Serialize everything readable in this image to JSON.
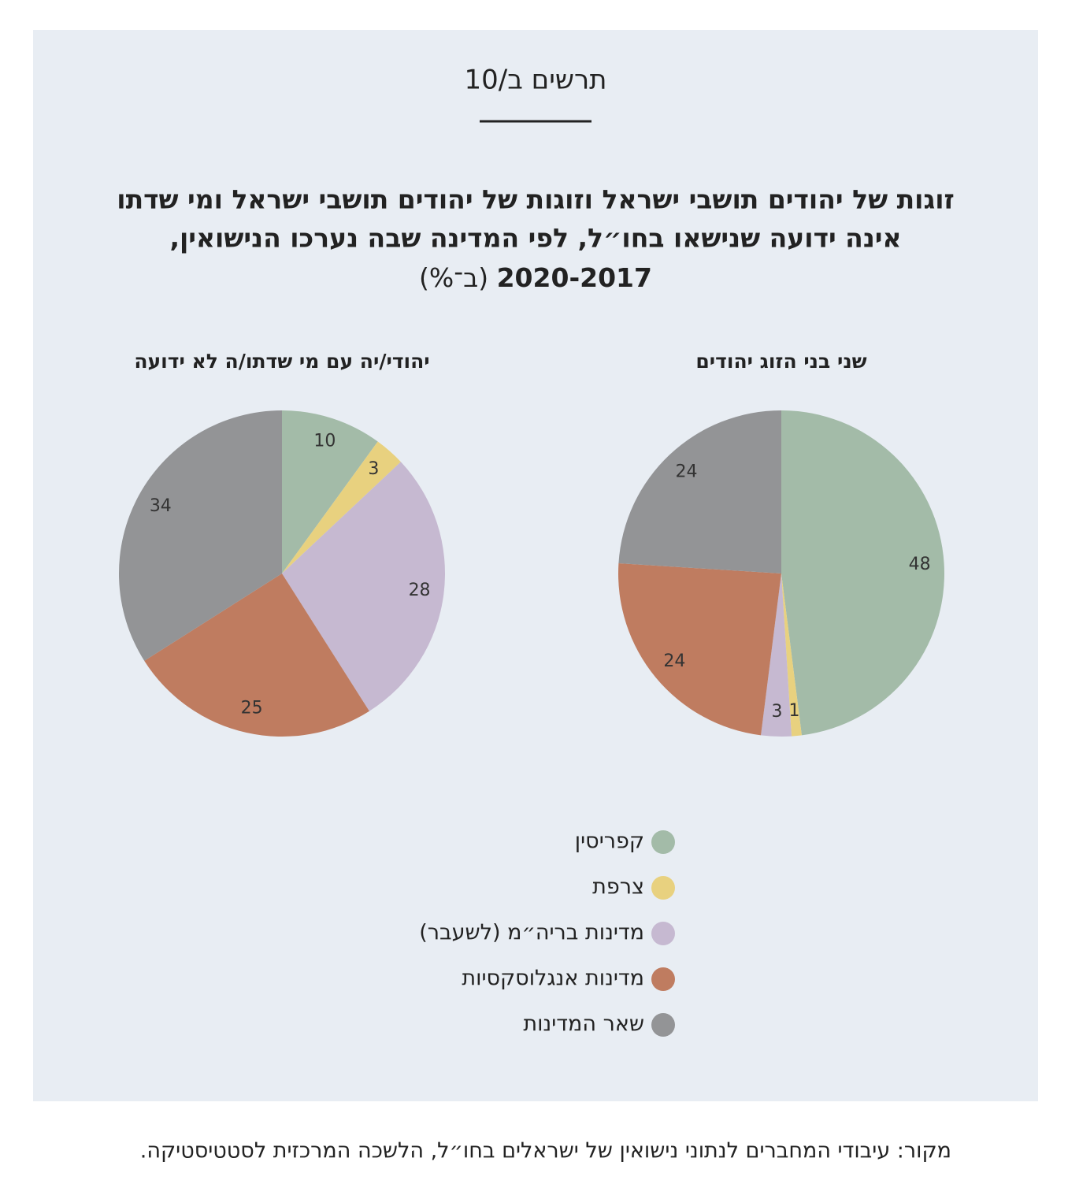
{
  "figure_label": "תרשים ב/10",
  "title": [
    "זוגות של יהודים תושבי ישראל וזוגות של יהודים תושבי ישראל ומי שדתו",
    "אינה ידועה שנישאו בחו״ל, לפי המדינה שבה נערכו הנישואין,",
    "2020-2017"
  ],
  "unit": "(ב־%)",
  "legend": {
    "categories": [
      "קפריסין",
      "צרפת",
      "מדינות בריה״מ (לשעבר)",
      "מדינות אנגלוסקסיות",
      "שאר המדינות"
    ],
    "colors": [
      "#a3bba8",
      "#e8d17f",
      "#c6b9d1",
      "#bf7c60",
      "#939496"
    ]
  },
  "chart_data": [
    {
      "type": "pie",
      "title": "שני בני הזוג יהודים",
      "values": [
        48,
        1,
        3,
        24,
        24
      ]
    },
    {
      "type": "pie",
      "title": "יהודי/יה עם מי שדתו/ה לא ידועה",
      "values": [
        10,
        3,
        28,
        25,
        34
      ]
    }
  ],
  "source": "מקור: עיבודי המחברים לנתוני נישואין של ישראלים בחו״ל, הלשכה המרכזית לסטטיסטיקה."
}
